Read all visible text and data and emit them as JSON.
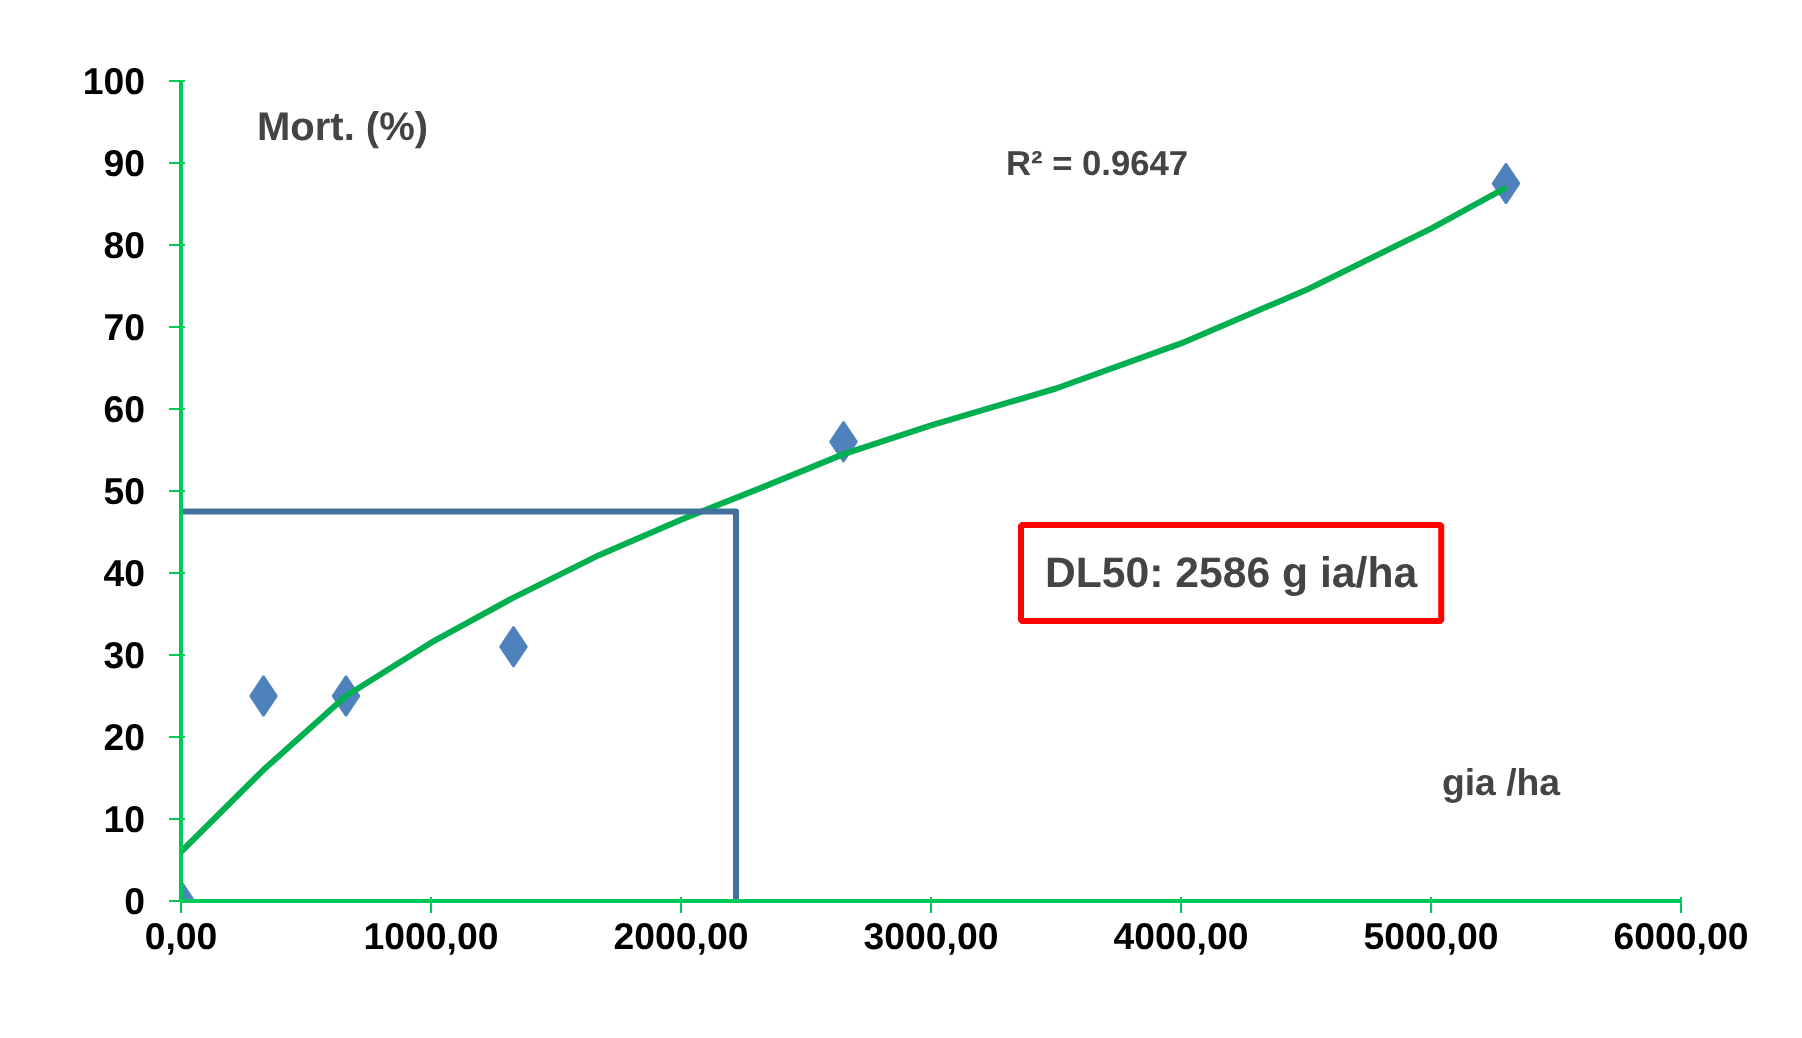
{
  "chart_data": {
    "type": "scatter",
    "xlabel": "gia /ha",
    "ylabel": "Mort. (%)",
    "xlim": [
      0,
      6000
    ],
    "ylim": [
      0,
      100
    ],
    "xticks": [
      {
        "value": 0,
        "label": "0,00"
      },
      {
        "value": 1000,
        "label": "1000,00"
      },
      {
        "value": 2000,
        "label": "2000,00"
      },
      {
        "value": 3000,
        "label": "3000,00"
      },
      {
        "value": 4000,
        "label": "4000,00"
      },
      {
        "value": 5000,
        "label": "5000,00"
      },
      {
        "value": 6000,
        "label": "6000,00"
      }
    ],
    "yticks": [
      0,
      10,
      20,
      30,
      40,
      50,
      60,
      70,
      80,
      90,
      100
    ],
    "grid": false,
    "series": [
      {
        "marker": "diamond",
        "color": "#4f81bd",
        "x": [
          0,
          330,
          660,
          1330,
          2650,
          5300
        ],
        "values": [
          0,
          25,
          25,
          31,
          56,
          87.5
        ]
      },
      {
        "type": "line",
        "marker": "none",
        "color": "#00b050",
        "x": [
          0,
          330,
          660,
          1000,
          1330,
          1660,
          2000,
          2330,
          2650,
          3000,
          3500,
          4000,
          4500,
          5000,
          5300
        ],
        "values": [
          6,
          16,
          25,
          31.5,
          37,
          42,
          46.5,
          50.5,
          54.5,
          58,
          62.5,
          68,
          74.5,
          82,
          87
        ]
      },
      {
        "type": "line",
        "marker": "none",
        "color": "#41719c",
        "x": [
          0,
          2220,
          2220
        ],
        "values": [
          47.5,
          47.5,
          0
        ]
      }
    ],
    "annotations": [
      "R² = 0.9647",
      "DL50: 2586 g ia/ha"
    ]
  }
}
